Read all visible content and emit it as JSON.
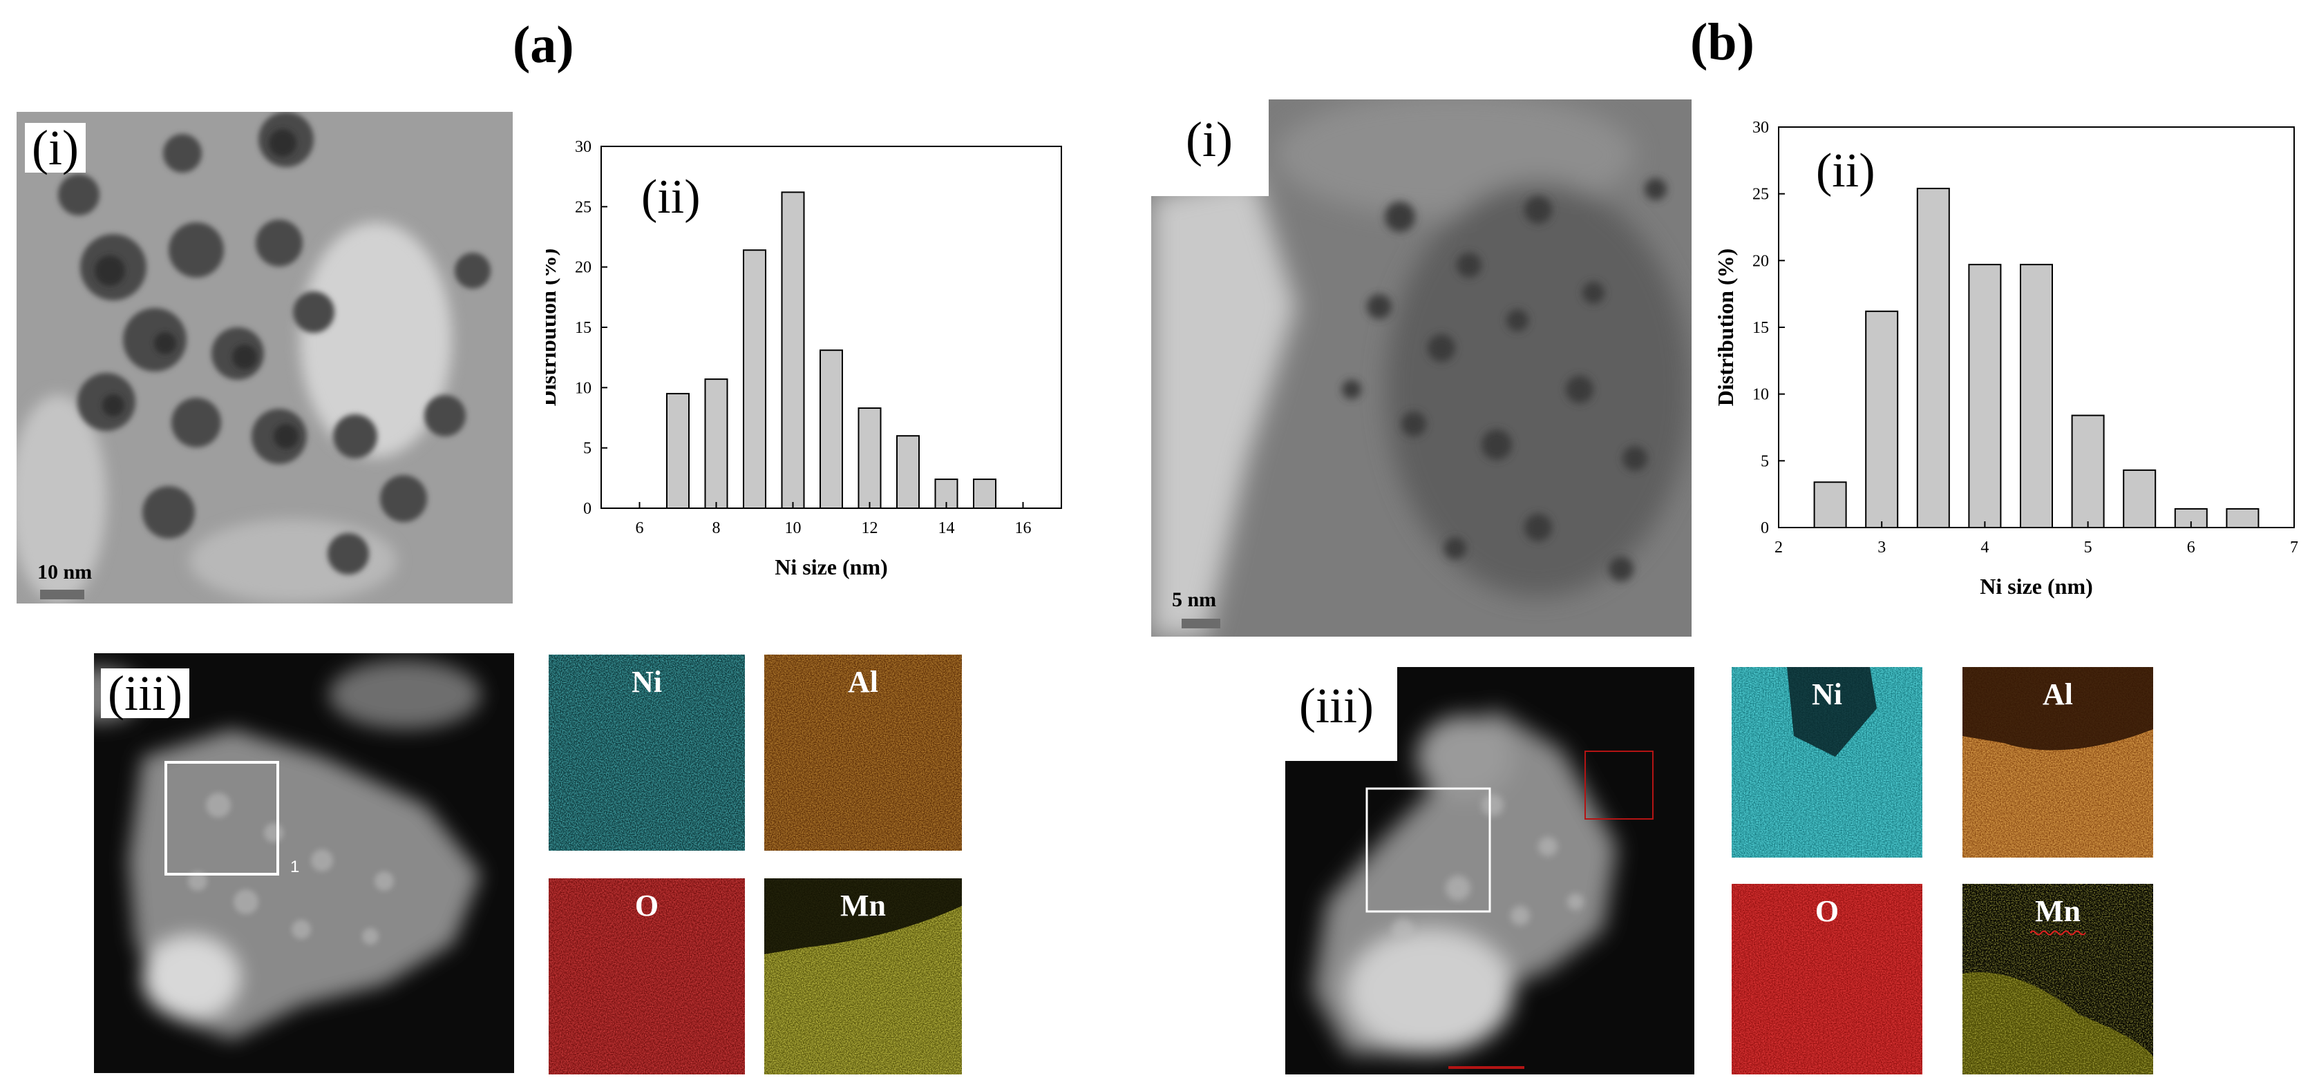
{
  "panels": [
    {
      "label": "(a)",
      "tem": {
        "label": "(i)",
        "scale_bar": "10 nm"
      },
      "haadf": {
        "label": "(iii)",
        "region_marker": "1"
      },
      "maps": [
        {
          "element": "Ni",
          "color": "#1fb7bf"
        },
        {
          "element": "Al",
          "color": "#c8650f"
        },
        {
          "element": "O",
          "color": "#d91a1a"
        },
        {
          "element": "Mn",
          "color": "#c6c21a"
        }
      ]
    },
    {
      "label": "(b)",
      "tem": {
        "label": "(i)",
        "scale_bar": "5 nm"
      },
      "haadf": {
        "label": "(iii)"
      },
      "maps": [
        {
          "element": "Ni",
          "color": "#20c0cc"
        },
        {
          "element": "Al",
          "color": "#d8731a"
        },
        {
          "element": "O",
          "color": "#e01616"
        },
        {
          "element": "Mn",
          "color": "#b7b414"
        }
      ]
    }
  ],
  "chart_data": [
    {
      "type": "bar",
      "panel_label": "(ii)",
      "xlabel": "Ni size (nm)",
      "ylabel": "Distribution (%)",
      "x": [
        7,
        8,
        9,
        10,
        11,
        12,
        13,
        14,
        15
      ],
      "values": [
        9.5,
        10.7,
        21.4,
        26.2,
        13.1,
        8.3,
        6.0,
        2.4,
        2.4
      ],
      "xlim": [
        5,
        17
      ],
      "ylim": [
        0,
        30
      ],
      "xticks": [
        6,
        8,
        10,
        12,
        14,
        16
      ],
      "yticks": [
        0,
        5,
        10,
        15,
        20,
        25,
        30
      ],
      "bar_color": "#c8c8c8",
      "grid": false
    },
    {
      "type": "bar",
      "panel_label": "(ii)",
      "xlabel": "Ni size (nm)",
      "ylabel": "Distribution (%)",
      "x": [
        2.5,
        3.0,
        3.5,
        4.0,
        4.5,
        5.0,
        5.5,
        6.0,
        6.5
      ],
      "values": [
        3.4,
        16.2,
        25.4,
        19.7,
        19.7,
        8.4,
        4.3,
        1.4,
        1.4
      ],
      "xlim": [
        2,
        7
      ],
      "ylim": [
        0,
        30
      ],
      "xticks": [
        2,
        3,
        4,
        5,
        6,
        7
      ],
      "yticks": [
        0,
        5,
        10,
        15,
        20,
        25,
        30
      ],
      "bar_color": "#c8c8c8",
      "grid": false
    }
  ]
}
